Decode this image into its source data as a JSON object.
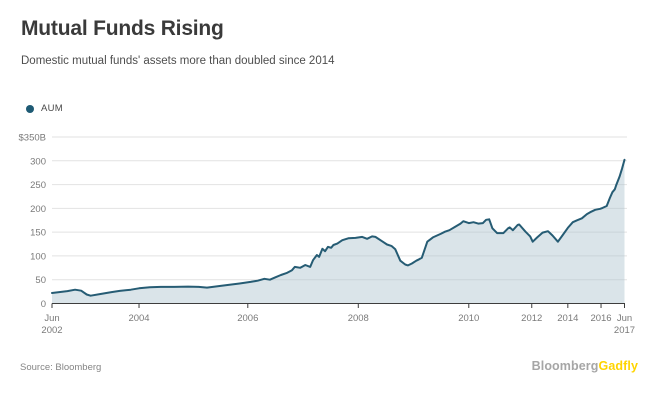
{
  "header": {
    "title": "Mutual Funds Rising",
    "subtitle": "Domestic mutual funds' assets more than doubled since 2014"
  },
  "legend": {
    "label": "AUM",
    "dot_color": "#1e5a74"
  },
  "footer": {
    "source": "Source: Bloomberg",
    "logo_gray": "Bloomberg",
    "logo_yellow": "Gadfly",
    "logo_gray_color": "#a6a6a6",
    "logo_yellow_color": "#ffd400"
  },
  "chart_data": {
    "type": "area",
    "series_name": "AUM",
    "unit": "$B",
    "line_color": "#265c74",
    "fill_color": "rgba(174,195,207,0.45)",
    "grid_color": "#e2e2e2",
    "axis_color": "#3d3d3d",
    "label_color": "#7a7a7a",
    "ylim": [
      0,
      350
    ],
    "y_axis": {
      "values": [
        350,
        300,
        250,
        200,
        150,
        100,
        50,
        0
      ],
      "labels": [
        "$350B",
        "300",
        "250",
        "200",
        "150",
        "100",
        "50",
        "0"
      ]
    },
    "x_axis": {
      "ticks": [
        {
          "line1": "Jun",
          "line2": "2002",
          "f": 0.0
        },
        {
          "line1": "2004",
          "f": 0.152
        },
        {
          "line1": "2006",
          "f": 0.342
        },
        {
          "line1": "2008",
          "f": 0.535
        },
        {
          "line1": "2010",
          "f": 0.728
        },
        {
          "line1": "2012",
          "f": 0.838
        },
        {
          "line1": "2014",
          "f": 0.901
        },
        {
          "line1": "2016",
          "f": 0.959
        },
        {
          "line1": "Jun",
          "line2": "2017",
          "f": 1.0
        }
      ],
      "anchor_years": [
        2002.42,
        2004,
        2006,
        2008,
        2010,
        2012,
        2014,
        2016,
        2017.45
      ],
      "anchor_fractions": [
        0.0,
        0.152,
        0.342,
        0.535,
        0.728,
        0.838,
        0.901,
        0.959,
        1.0
      ]
    },
    "points": [
      [
        2002.42,
        22
      ],
      [
        2002.55,
        24
      ],
      [
        2002.7,
        26
      ],
      [
        2002.84,
        29
      ],
      [
        2002.95,
        27
      ],
      [
        2003.05,
        19
      ],
      [
        2003.12,
        16.5
      ],
      [
        2003.3,
        20
      ],
      [
        2003.5,
        24
      ],
      [
        2003.65,
        26.5
      ],
      [
        2003.85,
        29
      ],
      [
        2004.0,
        32
      ],
      [
        2004.2,
        34
      ],
      [
        2004.4,
        35
      ],
      [
        2004.65,
        35
      ],
      [
        2004.9,
        35.5
      ],
      [
        2005.1,
        35
      ],
      [
        2005.25,
        33.5
      ],
      [
        2005.5,
        37
      ],
      [
        2005.7,
        40
      ],
      [
        2005.85,
        42
      ],
      [
        2006.05,
        45.5
      ],
      [
        2006.18,
        48
      ],
      [
        2006.3,
        52
      ],
      [
        2006.4,
        50
      ],
      [
        2006.5,
        55
      ],
      [
        2006.6,
        60
      ],
      [
        2006.7,
        64
      ],
      [
        2006.8,
        70
      ],
      [
        2006.85,
        77
      ],
      [
        2006.95,
        75
      ],
      [
        2007.04,
        81
      ],
      [
        2007.13,
        77
      ],
      [
        2007.18,
        91
      ],
      [
        2007.25,
        102
      ],
      [
        2007.29,
        98
      ],
      [
        2007.35,
        115
      ],
      [
        2007.4,
        110
      ],
      [
        2007.45,
        119
      ],
      [
        2007.51,
        117
      ],
      [
        2007.55,
        123
      ],
      [
        2007.62,
        126
      ],
      [
        2007.71,
        133
      ],
      [
        2007.82,
        137
      ],
      [
        2007.95,
        138
      ],
      [
        2008.07,
        140
      ],
      [
        2008.16,
        136
      ],
      [
        2008.25,
        141
      ],
      [
        2008.31,
        140
      ],
      [
        2008.43,
        131
      ],
      [
        2008.52,
        124
      ],
      [
        2008.6,
        121
      ],
      [
        2008.67,
        114
      ],
      [
        2008.76,
        90
      ],
      [
        2008.85,
        82
      ],
      [
        2008.9,
        80
      ],
      [
        2008.97,
        84
      ],
      [
        2009.05,
        90
      ],
      [
        2009.1,
        93
      ],
      [
        2009.15,
        96
      ],
      [
        2009.25,
        130
      ],
      [
        2009.35,
        139
      ],
      [
        2009.5,
        147
      ],
      [
        2009.57,
        151
      ],
      [
        2009.65,
        154
      ],
      [
        2009.75,
        161
      ],
      [
        2009.85,
        168
      ],
      [
        2009.9,
        173
      ],
      [
        2010.0,
        169
      ],
      [
        2010.15,
        171
      ],
      [
        2010.3,
        168
      ],
      [
        2010.45,
        169
      ],
      [
        2010.55,
        176
      ],
      [
        2010.65,
        177
      ],
      [
        2010.75,
        158
      ],
      [
        2010.9,
        148
      ],
      [
        2011.1,
        148
      ],
      [
        2011.25,
        158
      ],
      [
        2011.3,
        160
      ],
      [
        2011.4,
        154
      ],
      [
        2011.55,
        165
      ],
      [
        2011.6,
        166
      ],
      [
        2011.8,
        151
      ],
      [
        2011.95,
        141
      ],
      [
        2012.05,
        130
      ],
      [
        2012.3,
        139
      ],
      [
        2012.6,
        149
      ],
      [
        2012.9,
        152
      ],
      [
        2013.15,
        143
      ],
      [
        2013.45,
        130
      ],
      [
        2013.7,
        143
      ],
      [
        2014.0,
        159
      ],
      [
        2014.3,
        171
      ],
      [
        2014.55,
        175
      ],
      [
        2014.85,
        179
      ],
      [
        2015.15,
        188
      ],
      [
        2015.35,
        192
      ],
      [
        2015.65,
        197
      ],
      [
        2015.95,
        199
      ],
      [
        2016.1,
        201
      ],
      [
        2016.35,
        205
      ],
      [
        2016.55,
        222
      ],
      [
        2016.7,
        234
      ],
      [
        2016.85,
        240
      ],
      [
        2016.95,
        250
      ],
      [
        2017.15,
        267
      ],
      [
        2017.3,
        284
      ],
      [
        2017.45,
        302
      ]
    ]
  }
}
